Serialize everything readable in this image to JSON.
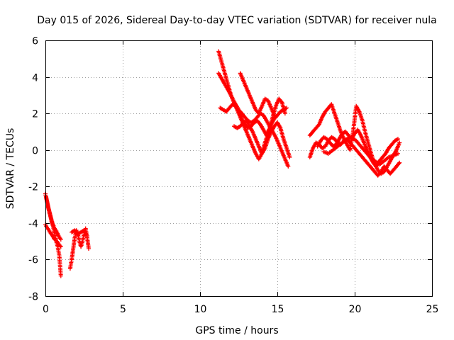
{
  "chart_data": {
    "type": "scatter",
    "title": "Day 015 of 2026, Sidereal Day-to-day VTEC variation (SDTVAR) for receiver nula",
    "xlabel": "GPS time / hours",
    "ylabel": "SDTVAR / TECUs",
    "xlim": [
      0,
      25
    ],
    "ylim": [
      -8,
      6
    ],
    "xticks": [
      "0",
      "5",
      "10",
      "15",
      "20",
      "25"
    ],
    "yticks": [
      "-8",
      "-6",
      "-4",
      "-2",
      "0",
      "2",
      "4",
      "6"
    ],
    "grid": true,
    "marker": "plus",
    "color": "#ff0000",
    "series": [
      {
        "name": "SDTVAR",
        "segments": [
          {
            "x": [
              0.0,
              0.1,
              0.2,
              0.3,
              0.4,
              0.5,
              0.6,
              0.7,
              0.8,
              0.9,
              1.0
            ],
            "y": [
              -2.4,
              -2.8,
              -3.2,
              -3.5,
              -3.9,
              -4.2,
              -4.6,
              -5.0,
              -5.3,
              -5.8,
              -6.9
            ]
          },
          {
            "x": [
              0.0,
              0.15,
              0.3,
              0.45,
              0.6,
              0.75,
              0.9,
              1.0
            ],
            "y": [
              -4.1,
              -4.3,
              -4.5,
              -4.7,
              -4.9,
              -5.0,
              -5.2,
              -5.3
            ]
          },
          {
            "x": [
              0.05,
              0.15,
              0.25,
              0.35,
              0.45,
              0.6,
              0.75,
              0.85,
              1.0
            ],
            "y": [
              -2.6,
              -3.0,
              -3.4,
              -3.7,
              -4.0,
              -4.3,
              -4.5,
              -4.7,
              -4.9
            ]
          },
          {
            "x": [
              1.6,
              1.7,
              1.8,
              1.9,
              2.0,
              2.1,
              2.2,
              2.3,
              2.4,
              2.5,
              2.6,
              2.7,
              2.8
            ],
            "y": [
              -6.5,
              -6.0,
              -5.4,
              -4.8,
              -4.4,
              -4.6,
              -5.0,
              -5.3,
              -5.0,
              -4.6,
              -4.3,
              -4.8,
              -5.4
            ]
          },
          {
            "x": [
              1.7,
              1.9,
              2.1,
              2.3,
              2.5,
              2.7
            ],
            "y": [
              -4.5,
              -4.4,
              -4.6,
              -4.5,
              -4.4,
              -4.7
            ]
          },
          {
            "x": [
              11.2,
              11.3,
              11.4,
              11.5,
              11.6,
              11.7,
              11.8,
              11.9,
              12.0,
              12.1,
              12.3,
              12.5,
              12.7,
              12.9,
              13.1,
              13.3,
              13.5,
              13.7,
              13.9,
              14.1,
              14.3,
              14.5,
              14.7,
              14.9,
              15.1,
              15.3,
              15.5,
              15.7
            ],
            "y": [
              5.4,
              5.1,
              4.8,
              4.5,
              4.2,
              3.9,
              3.6,
              3.3,
              3.0,
              2.8,
              2.5,
              2.2,
              2.0,
              1.8,
              1.6,
              1.5,
              1.6,
              1.8,
              2.0,
              1.9,
              1.6,
              1.3,
              1.0,
              0.7,
              0.3,
              -0.1,
              -0.5,
              -0.9
            ]
          },
          {
            "x": [
              11.2,
              11.4,
              11.6,
              11.8,
              12.0,
              12.2,
              12.4,
              12.6,
              12.8,
              13.0,
              13.2,
              13.4,
              13.6,
              13.8,
              14.0,
              14.2,
              14.4,
              14.6,
              14.8,
              15.0,
              15.2,
              15.4,
              15.6
            ],
            "y": [
              4.2,
              3.9,
              3.6,
              3.3,
              3.0,
              2.6,
              2.2,
              1.8,
              1.4,
              1.0,
              0.6,
              0.2,
              -0.2,
              -0.5,
              -0.2,
              0.4,
              0.9,
              1.4,
              1.7,
              1.9,
              2.1,
              2.2,
              2.3
            ]
          },
          {
            "x": [
              11.3,
              11.5,
              11.7,
              11.9,
              12.1,
              12.3,
              12.5,
              12.7,
              12.9,
              13.1,
              13.3,
              13.5,
              13.7,
              13.9,
              14.1,
              14.3,
              14.5,
              14.7,
              14.9,
              15.1,
              15.3,
              15.5
            ],
            "y": [
              2.3,
              2.2,
              2.1,
              2.3,
              2.5,
              2.4,
              2.1,
              1.7,
              1.4,
              1.2,
              1.3,
              1.5,
              1.6,
              1.4,
              1.1,
              0.8,
              1.2,
              1.8,
              2.4,
              2.8,
              2.6,
              2.0
            ]
          },
          {
            "x": [
              12.2,
              12.4,
              12.6,
              12.8,
              13.0,
              13.2,
              13.4,
              13.6,
              13.8,
              14.0,
              14.2,
              14.4,
              14.6,
              14.8,
              15.0,
              15.2,
              15.4,
              15.6,
              15.8
            ],
            "y": [
              1.3,
              1.2,
              1.3,
              1.5,
              1.6,
              1.3,
              1.0,
              0.6,
              0.2,
              -0.2,
              0.1,
              0.6,
              1.0,
              1.3,
              1.5,
              1.2,
              0.6,
              0.1,
              -0.4
            ]
          },
          {
            "x": [
              12.6,
              12.8,
              13.0,
              13.2,
              13.4,
              13.6,
              13.8,
              14.0,
              14.2,
              14.4,
              14.6,
              14.8
            ],
            "y": [
              4.2,
              3.8,
              3.4,
              3.0,
              2.6,
              2.2,
              2.0,
              2.4,
              2.8,
              2.7,
              2.3,
              1.9
            ]
          },
          {
            "x": [
              17.1,
              17.3,
              17.5,
              17.7,
              17.9,
              18.1,
              18.3,
              18.5,
              18.7,
              18.9,
              19.1,
              19.3,
              19.5,
              19.7,
              19.9,
              20.1,
              20.3,
              20.5,
              20.7,
              20.9,
              21.1,
              21.3,
              21.5,
              21.7,
              21.9,
              22.1,
              22.3,
              22.5,
              22.7,
              22.9
            ],
            "y": [
              0.8,
              1.0,
              1.2,
              1.4,
              1.8,
              2.1,
              2.3,
              2.5,
              2.0,
              1.5,
              1.0,
              0.6,
              0.3,
              0.0,
              1.0,
              2.4,
              2.1,
              1.6,
              0.9,
              0.3,
              -0.3,
              -0.8,
              -1.1,
              -1.3,
              -1.2,
              -0.9,
              -0.6,
              -0.3,
              0.0,
              0.4
            ]
          },
          {
            "x": [
              17.1,
              17.3,
              17.5,
              17.7,
              17.9,
              18.1,
              18.3,
              18.5,
              18.7,
              18.9,
              19.1,
              19.3,
              19.5,
              19.7,
              19.9,
              20.1,
              20.3,
              20.5,
              20.7,
              20.9,
              21.1,
              21.3,
              21.5,
              21.7,
              21.9,
              22.1,
              22.3,
              22.5,
              22.7,
              22.9
            ],
            "y": [
              -0.4,
              0.1,
              0.4,
              0.3,
              0.1,
              0.2,
              0.5,
              0.7,
              0.6,
              0.4,
              0.3,
              0.5,
              0.6,
              0.4,
              0.2,
              0.0,
              -0.2,
              -0.4,
              -0.6,
              -0.8,
              -1.0,
              -1.2,
              -1.4,
              -1.2,
              -0.9,
              -1.1,
              -1.3,
              -1.1,
              -0.9,
              -0.7
            ]
          },
          {
            "x": [
              17.6,
              17.8,
              18.0,
              18.2,
              18.4,
              18.6,
              18.8,
              19.0,
              19.2,
              19.4,
              19.6,
              19.8,
              20.0,
              20.2,
              20.4,
              20.6,
              20.8,
              21.0,
              21.2,
              21.4,
              21.6,
              21.8,
              22.0,
              22.2,
              22.4,
              22.6,
              22.8
            ],
            "y": [
              0.2,
              0.5,
              0.7,
              0.6,
              0.4,
              0.2,
              0.3,
              0.6,
              0.9,
              1.0,
              0.8,
              0.6,
              0.9,
              1.1,
              0.8,
              0.4,
              0.0,
              -0.4,
              -0.7,
              -0.9,
              -0.6,
              -0.4,
              -0.2,
              0.1,
              0.3,
              0.5,
              0.6
            ]
          },
          {
            "x": [
              18.0,
              18.3,
              18.6,
              18.9,
              19.2,
              19.5,
              19.8,
              20.1,
              20.4,
              20.7,
              21.0,
              21.3,
              21.6,
              21.9,
              22.2,
              22.5,
              22.8
            ],
            "y": [
              -0.1,
              -0.2,
              0.0,
              0.2,
              0.4,
              0.6,
              0.7,
              0.5,
              0.2,
              -0.1,
              -0.4,
              -0.6,
              -0.8,
              -0.6,
              -0.4,
              -0.3,
              -0.2
            ]
          }
        ]
      }
    ]
  }
}
